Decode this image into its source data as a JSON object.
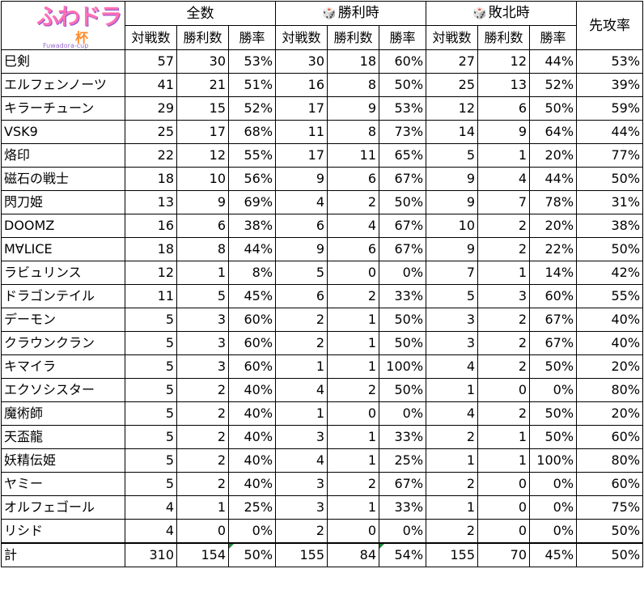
{
  "logo": {
    "text": "ふわドラ",
    "sub": "Fuwadora-cup",
    "badge": "杯"
  },
  "groups": {
    "all": "全数",
    "win": "勝利時",
    "lose": "敗北時",
    "first": "先攻率",
    "dice": "🎲"
  },
  "subheaders": {
    "games": "対戦数",
    "wins": "勝利数",
    "rate": "勝率"
  },
  "rows": [
    {
      "name": "巳剣",
      "a": [
        "57",
        "30",
        "53%"
      ],
      "w": [
        "30",
        "18",
        "60%"
      ],
      "l": [
        "27",
        "12",
        "44%"
      ],
      "f": "53%"
    },
    {
      "name": "エルフェンノーツ",
      "a": [
        "41",
        "21",
        "51%"
      ],
      "w": [
        "16",
        "8",
        "50%"
      ],
      "l": [
        "25",
        "13",
        "52%"
      ],
      "f": "39%"
    },
    {
      "name": "キラーチューン",
      "a": [
        "29",
        "15",
        "52%"
      ],
      "w": [
        "17",
        "9",
        "53%"
      ],
      "l": [
        "12",
        "6",
        "50%"
      ],
      "f": "59%"
    },
    {
      "name": "VSK9",
      "a": [
        "25",
        "17",
        "68%"
      ],
      "w": [
        "11",
        "8",
        "73%"
      ],
      "l": [
        "14",
        "9",
        "64%"
      ],
      "f": "44%"
    },
    {
      "name": "烙印",
      "a": [
        "22",
        "12",
        "55%"
      ],
      "w": [
        "17",
        "11",
        "65%"
      ],
      "l": [
        "5",
        "1",
        "20%"
      ],
      "f": "77%"
    },
    {
      "name": "磁石の戦士",
      "a": [
        "18",
        "10",
        "56%"
      ],
      "w": [
        "9",
        "6",
        "67%"
      ],
      "l": [
        "9",
        "4",
        "44%"
      ],
      "f": "50%"
    },
    {
      "name": "閃刀姫",
      "a": [
        "13",
        "9",
        "69%"
      ],
      "w": [
        "4",
        "2",
        "50%"
      ],
      "l": [
        "9",
        "7",
        "78%"
      ],
      "f": "31%"
    },
    {
      "name": "DOOMZ",
      "a": [
        "16",
        "6",
        "38%"
      ],
      "w": [
        "6",
        "4",
        "67%"
      ],
      "l": [
        "10",
        "2",
        "20%"
      ],
      "f": "38%"
    },
    {
      "name": "M∀LICE",
      "a": [
        "18",
        "8",
        "44%"
      ],
      "w": [
        "9",
        "6",
        "67%"
      ],
      "l": [
        "9",
        "2",
        "22%"
      ],
      "f": "50%"
    },
    {
      "name": "ラビュリンス",
      "a": [
        "12",
        "1",
        "8%"
      ],
      "w": [
        "5",
        "0",
        "0%"
      ],
      "l": [
        "7",
        "1",
        "14%"
      ],
      "f": "42%"
    },
    {
      "name": "ドラゴンテイル",
      "a": [
        "11",
        "5",
        "45%"
      ],
      "w": [
        "6",
        "2",
        "33%"
      ],
      "l": [
        "5",
        "3",
        "60%"
      ],
      "f": "55%"
    },
    {
      "name": "デーモン",
      "a": [
        "5",
        "3",
        "60%"
      ],
      "w": [
        "2",
        "1",
        "50%"
      ],
      "l": [
        "3",
        "2",
        "67%"
      ],
      "f": "40%"
    },
    {
      "name": "クラウンクラン",
      "a": [
        "5",
        "3",
        "60%"
      ],
      "w": [
        "2",
        "1",
        "50%"
      ],
      "l": [
        "3",
        "2",
        "67%"
      ],
      "f": "40%"
    },
    {
      "name": "キマイラ",
      "a": [
        "5",
        "3",
        "60%"
      ],
      "w": [
        "1",
        "1",
        "100%"
      ],
      "l": [
        "4",
        "2",
        "50%"
      ],
      "f": "20%"
    },
    {
      "name": "エクソシスター",
      "a": [
        "5",
        "2",
        "40%"
      ],
      "w": [
        "4",
        "2",
        "50%"
      ],
      "l": [
        "1",
        "0",
        "0%"
      ],
      "f": "80%"
    },
    {
      "name": "魔術師",
      "a": [
        "5",
        "2",
        "40%"
      ],
      "w": [
        "1",
        "0",
        "0%"
      ],
      "l": [
        "4",
        "2",
        "50%"
      ],
      "f": "20%"
    },
    {
      "name": "天盃龍",
      "a": [
        "5",
        "2",
        "40%"
      ],
      "w": [
        "3",
        "1",
        "33%"
      ],
      "l": [
        "2",
        "1",
        "50%"
      ],
      "f": "60%"
    },
    {
      "name": "妖精伝姫",
      "a": [
        "5",
        "2",
        "40%"
      ],
      "w": [
        "4",
        "1",
        "25%"
      ],
      "l": [
        "1",
        "1",
        "100%"
      ],
      "f": "80%"
    },
    {
      "name": "ヤミー",
      "a": [
        "5",
        "2",
        "40%"
      ],
      "w": [
        "3",
        "2",
        "67%"
      ],
      "l": [
        "2",
        "0",
        "0%"
      ],
      "f": "60%"
    },
    {
      "name": "オルフェゴール",
      "a": [
        "4",
        "1",
        "25%"
      ],
      "w": [
        "3",
        "1",
        "33%"
      ],
      "l": [
        "1",
        "0",
        "0%"
      ],
      "f": "75%"
    },
    {
      "name": "リシド",
      "a": [
        "4",
        "0",
        "0%"
      ],
      "w": [
        "2",
        "0",
        "0%"
      ],
      "l": [
        "2",
        "0",
        "0%"
      ],
      "f": "50%"
    }
  ],
  "total": {
    "name": "計",
    "a": [
      "310",
      "154",
      "50%"
    ],
    "w": [
      "155",
      "84",
      "54%"
    ],
    "l": [
      "155",
      "70",
      "45%"
    ],
    "f": "50%"
  }
}
